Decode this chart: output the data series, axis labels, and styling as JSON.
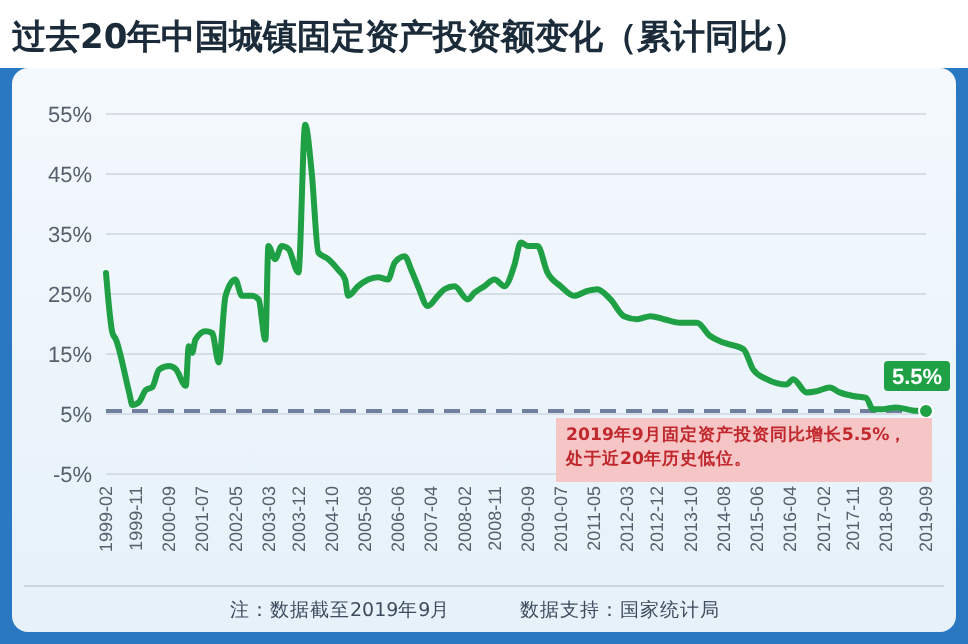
{
  "chart_data": {
    "type": "line",
    "title": "过去20年中国城镇固定资产投资额变化（累计同比）",
    "x": [
      "1999-02",
      "1999-04",
      "1999-05",
      "1999-09",
      "1999-10",
      "1999-12",
      "2000-02",
      "2000-04",
      "2000-06",
      "2000-09",
      "2000-11",
      "2001-02",
      "2001-03",
      "2001-04",
      "2001-05",
      "2001-08",
      "2001-10",
      "2001-12",
      "2002-02",
      "2002-05",
      "2002-07",
      "2002-10",
      "2002-12",
      "2003-02",
      "2003-03",
      "2003-05",
      "2003-07",
      "2003-09",
      "2003-12",
      "2004-02",
      "2004-04",
      "2004-06",
      "2004-09",
      "2004-12",
      "2005-02",
      "2005-03",
      "2005-06",
      "2005-09",
      "2005-12",
      "2006-03",
      "2006-05",
      "2006-08",
      "2006-10",
      "2006-12",
      "2007-03",
      "2007-06",
      "2007-08",
      "2007-11",
      "2008-03",
      "2008-05",
      "2008-08",
      "2008-11",
      "2009-02",
      "2009-05",
      "2009-07",
      "2009-09",
      "2009-12",
      "2010-03",
      "2010-07",
      "2010-11",
      "2011-03",
      "2011-06",
      "2011-10",
      "2012-02",
      "2012-06",
      "2012-10",
      "2013-02",
      "2013-07",
      "2013-12",
      "2014-04",
      "2014-08",
      "2015-02",
      "2015-05",
      "2015-09",
      "2016-03",
      "2016-05",
      "2016-09",
      "2016-12",
      "2017-04",
      "2017-07",
      "2017-11",
      "2018-03",
      "2018-05",
      "2018-08",
      "2018-12",
      "2019-05",
      "2019-09"
    ],
    "series": [
      {
        "color": "#1fa045",
        "values": [
          28.5,
          18.5,
          17.5,
          8.6,
          6.5,
          7,
          9,
          9.5,
          12.4,
          13,
          12.5,
          9.7,
          16.3,
          15.2,
          17.4,
          18.8,
          18.5,
          13.6,
          24.7,
          27.4,
          24.7,
          24.7,
          24.1,
          17.4,
          33,
          30.8,
          33,
          32.5,
          28.6,
          53.2,
          45.2,
          31.9,
          30.8,
          29,
          27.4,
          24.7,
          26.3,
          27.4,
          27.8,
          27.4,
          30.2,
          31.3,
          29,
          26.3,
          23,
          24.7,
          25.8,
          26.3,
          24.1,
          25.2,
          26.3,
          27.4,
          26.3,
          29.7,
          33.6,
          33,
          33,
          28.6,
          26.3,
          24.7,
          25.5,
          25.8,
          24.1,
          21.3,
          20.8,
          21.3,
          20.8,
          20.2,
          20.2,
          18,
          16.9,
          15.8,
          12.4,
          10.8,
          9.9,
          10.8,
          8.6,
          8.8,
          9.4,
          8.6,
          8,
          7.7,
          5.8,
          5.8,
          6.1,
          5.6,
          5.5
        ]
      }
    ],
    "xlim": [
      "1999-02",
      "2019-09"
    ],
    "xticks": [
      "1999-02",
      "1999-11",
      "2000-09",
      "2001-07",
      "2002-05",
      "2003-03",
      "2003-12",
      "2004-10",
      "2005-08",
      "2006-06",
      "2007-04",
      "2008-02",
      "2008-11",
      "2009-09",
      "2010-07",
      "2011-05",
      "2012-03",
      "2012-12",
      "2013-10",
      "2014-08",
      "2015-06",
      "2016-04",
      "2017-02",
      "2017-11",
      "2018-09",
      "2019-09"
    ],
    "ylim": [
      -5,
      55
    ],
    "yticks": [
      {
        "value": -5,
        "label": "-5%"
      },
      {
        "value": 5,
        "label": "5%"
      },
      {
        "value": 15,
        "label": "15%"
      },
      {
        "value": 25,
        "label": "25%"
      },
      {
        "value": 35,
        "label": "35%"
      },
      {
        "value": 45,
        "label": "45%"
      },
      {
        "value": 55,
        "label": "55%"
      }
    ],
    "grid": "y",
    "ref_lines": [
      {
        "axis": "y",
        "value": 5.5,
        "color": "#6f7f9c",
        "line_style": "dashed"
      }
    ],
    "annotations": [
      {
        "text": "5.5%",
        "x": "2019-09",
        "y": 5.5
      },
      "2019年9月固定资产投资同比增长5.5%，处于近20年历史低位。",
      "注：数据截至2019年9月",
      "数据支持：国家统计局"
    ]
  }
}
